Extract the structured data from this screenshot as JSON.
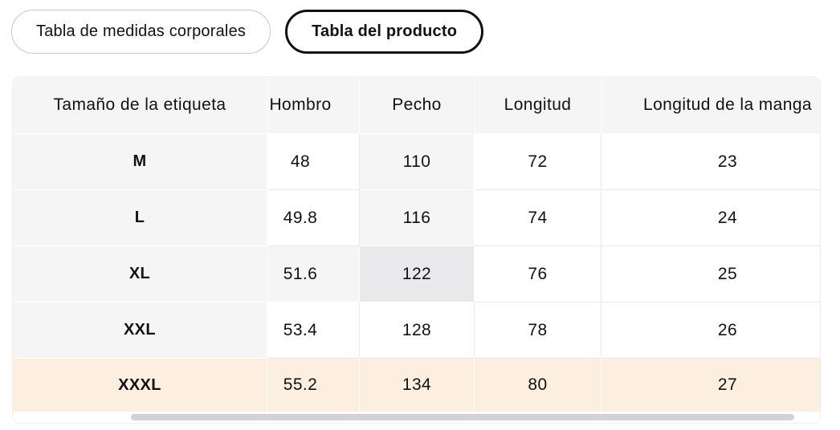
{
  "tabs": [
    {
      "label": "Tabla de medidas corporales",
      "selected": false
    },
    {
      "label": "Tabla del producto",
      "selected": true
    }
  ],
  "table": {
    "corner_header": "Tamaño de la etiqueta",
    "columns": [
      "Hombro",
      "Pecho",
      "Longitud",
      "Longitud de la manga"
    ],
    "rows": [
      {
        "size": "M",
        "values": [
          "48",
          "110",
          "72",
          "23"
        ]
      },
      {
        "size": "L",
        "values": [
          "49.8",
          "116",
          "74",
          "24"
        ]
      },
      {
        "size": "XL",
        "values": [
          "51.6",
          "122",
          "76",
          "25"
        ]
      },
      {
        "size": "XXL",
        "values": [
          "53.4",
          "128",
          "78",
          "26"
        ]
      },
      {
        "size": "XXXL",
        "values": [
          "55.2",
          "134",
          "80",
          "27"
        ]
      }
    ],
    "highlight": {
      "highlighted_column": "Pecho",
      "crosshair_row": "XL",
      "crosshair_value": "122",
      "selected_row": "XXXL"
    },
    "colors": {
      "header_bg": "#f5f5f6",
      "crosshair_cell_bg": "#e9e9eb",
      "selected_row_bg": "#fcefe0",
      "scrollbar_thumb": "#d2d2d4",
      "selected_tab_border": "#101010",
      "unselected_tab_border": "#c6c9cc"
    }
  }
}
